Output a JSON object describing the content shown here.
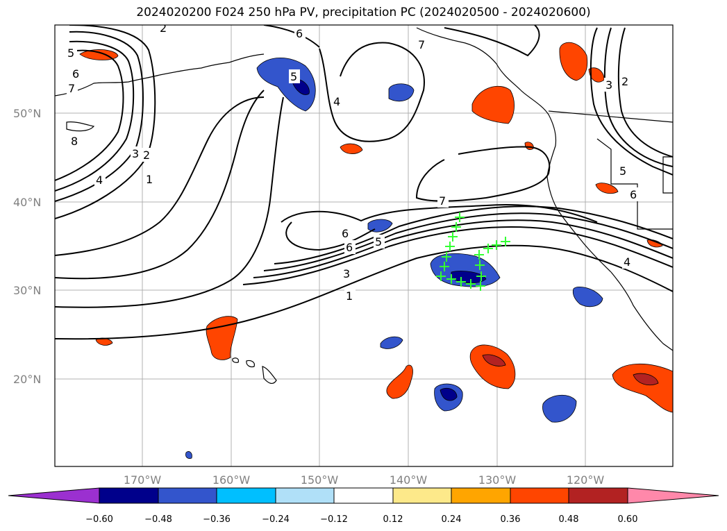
{
  "title": "2024020200 F024 250 hPa PV, precipitation PC (2024020500 - 2024020600)",
  "lat_labels": [
    "50°N",
    "40°N",
    "30°N",
    "20°N"
  ],
  "lon_labels": [
    "170°W",
    "160°W",
    "150°W",
    "140°W",
    "130°W",
    "120°W"
  ],
  "colorbar": {
    "ticks": [
      "−0.60",
      "−0.48",
      "−0.36",
      "−0.24",
      "−0.12",
      "0.12",
      "0.24",
      "0.36",
      "0.48",
      "0.60"
    ],
    "under_color": "#9b30d0",
    "over_color": "#ff88aa",
    "colors": [
      "#00008b",
      "#3355cc",
      "#00bfff",
      "#b0e0f8",
      "#ffffff",
      "#fde98a",
      "#ffa500",
      "#ff4500",
      "#b22222"
    ]
  },
  "contour_labels": [
    "5",
    "6",
    "7",
    "8",
    "4",
    "3",
    "2",
    "1",
    "2",
    "6",
    "5",
    "4",
    "7",
    "7",
    "6",
    "5",
    "3",
    "1",
    "6",
    "3",
    "2",
    "5",
    "6",
    "4"
  ]
}
